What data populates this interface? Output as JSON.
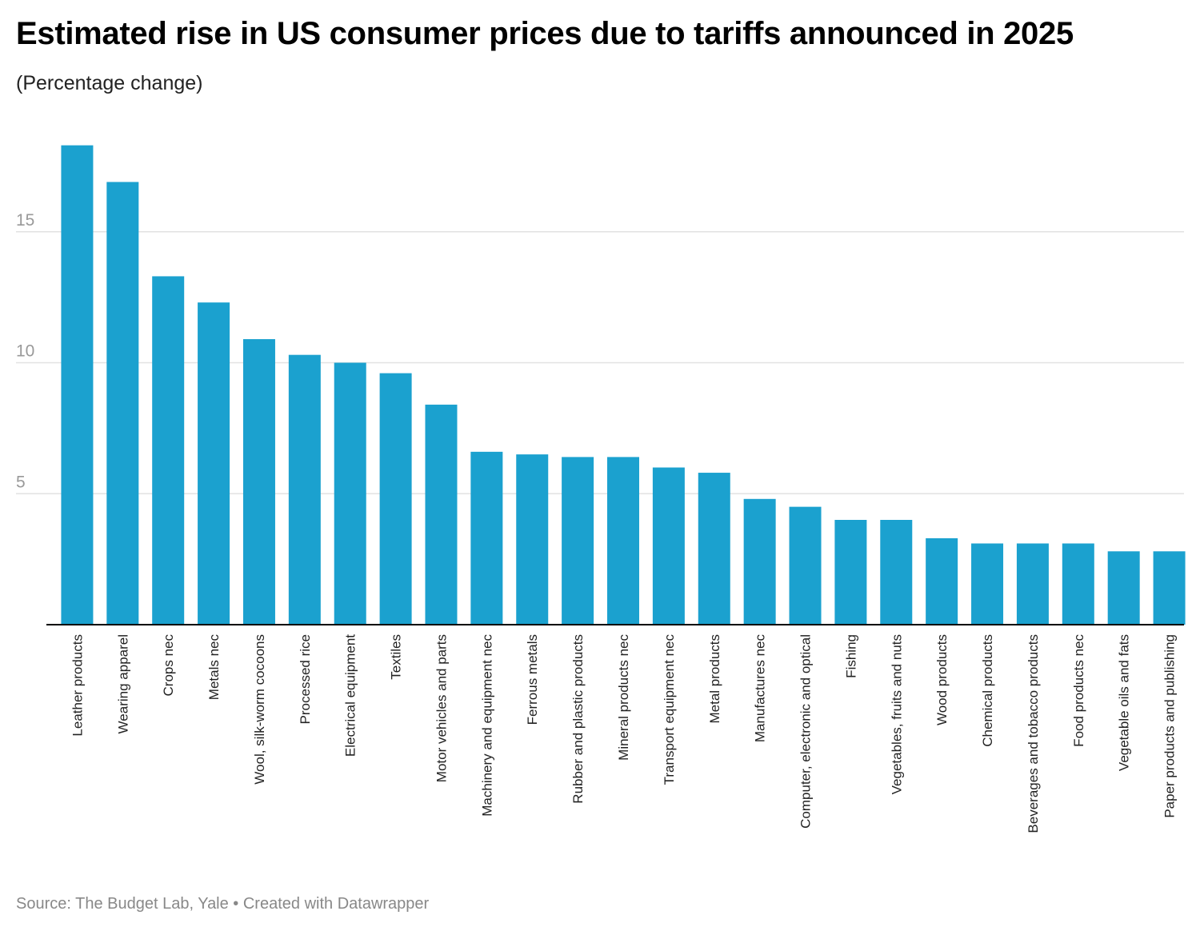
{
  "title": "Estimated rise in US consumer prices due to tariffs announced in 2025",
  "subtitle": "(Percentage change)",
  "footer": "Source: The Budget Lab, Yale • Created with Datawrapper",
  "colors": {
    "bar": "#1ba1cf",
    "grid": "#e2e2e2",
    "axis": "#000000"
  },
  "chart_data": {
    "type": "bar",
    "title": "Estimated rise in US consumer prices due to tariffs announced in 2025",
    "subtitle": "(Percentage change)",
    "categories": [
      "Leather products",
      "Wearing apparel",
      "Crops nec",
      "Metals nec",
      "Wool, silk-worm cocoons",
      "Processed rice",
      "Electrical equipment",
      "Textiles",
      "Motor vehicles and parts",
      "Machinery and equipment nec",
      "Ferrous metals",
      "Rubber and plastic products",
      "Mineral products nec",
      "Transport equipment nec",
      "Metal products",
      "Manufactures nec",
      "Computer, electronic and optical",
      "Fishing",
      "Vegetables, fruits and nuts",
      "Wood products",
      "Chemical products",
      "Beverages and tobacco products",
      "Food products nec",
      "Vegetable oils and fats",
      "Paper products and publishing"
    ],
    "values": [
      18.3,
      16.9,
      13.3,
      12.3,
      10.9,
      10.3,
      10.0,
      9.6,
      8.4,
      6.6,
      6.5,
      6.4,
      6.4,
      6.0,
      5.8,
      4.8,
      4.5,
      4.0,
      4.0,
      3.3,
      3.1,
      3.1,
      3.1,
      2.8,
      2.8
    ],
    "ylim": [
      0,
      20
    ],
    "yticks": [
      5,
      10,
      15
    ],
    "grid": true,
    "xlabel": "",
    "ylabel": ""
  }
}
